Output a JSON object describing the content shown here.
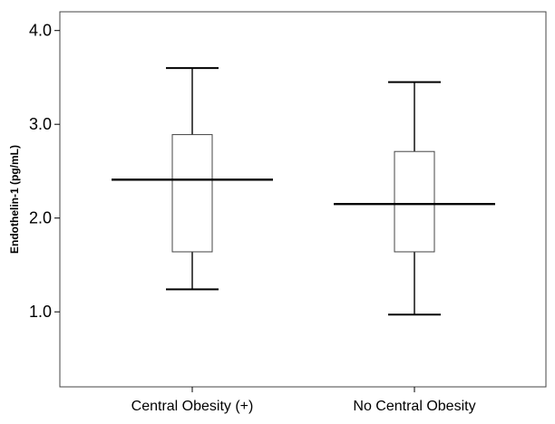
{
  "chart_data": {
    "type": "box",
    "title": "",
    "xlabel": "",
    "ylabel": "Endothelin-1 (pg/mL)",
    "ylim": [
      0.2,
      4.2
    ],
    "yticks": [
      1.0,
      2.0,
      3.0,
      4.0
    ],
    "ytick_labels": [
      "1.0",
      "2.0",
      "3.0",
      "4.0"
    ],
    "grid": false,
    "categories": [
      "Central Obesity (+)",
      "No Central Obesity"
    ],
    "boxes": [
      {
        "category": "Central Obesity (+)",
        "min": 1.24,
        "q1": 1.64,
        "median": 2.41,
        "q3": 2.89,
        "max": 3.6
      },
      {
        "category": "No Central Obesity",
        "min": 0.97,
        "q1": 1.64,
        "median": 2.15,
        "q3": 2.71,
        "max": 3.45
      }
    ]
  }
}
